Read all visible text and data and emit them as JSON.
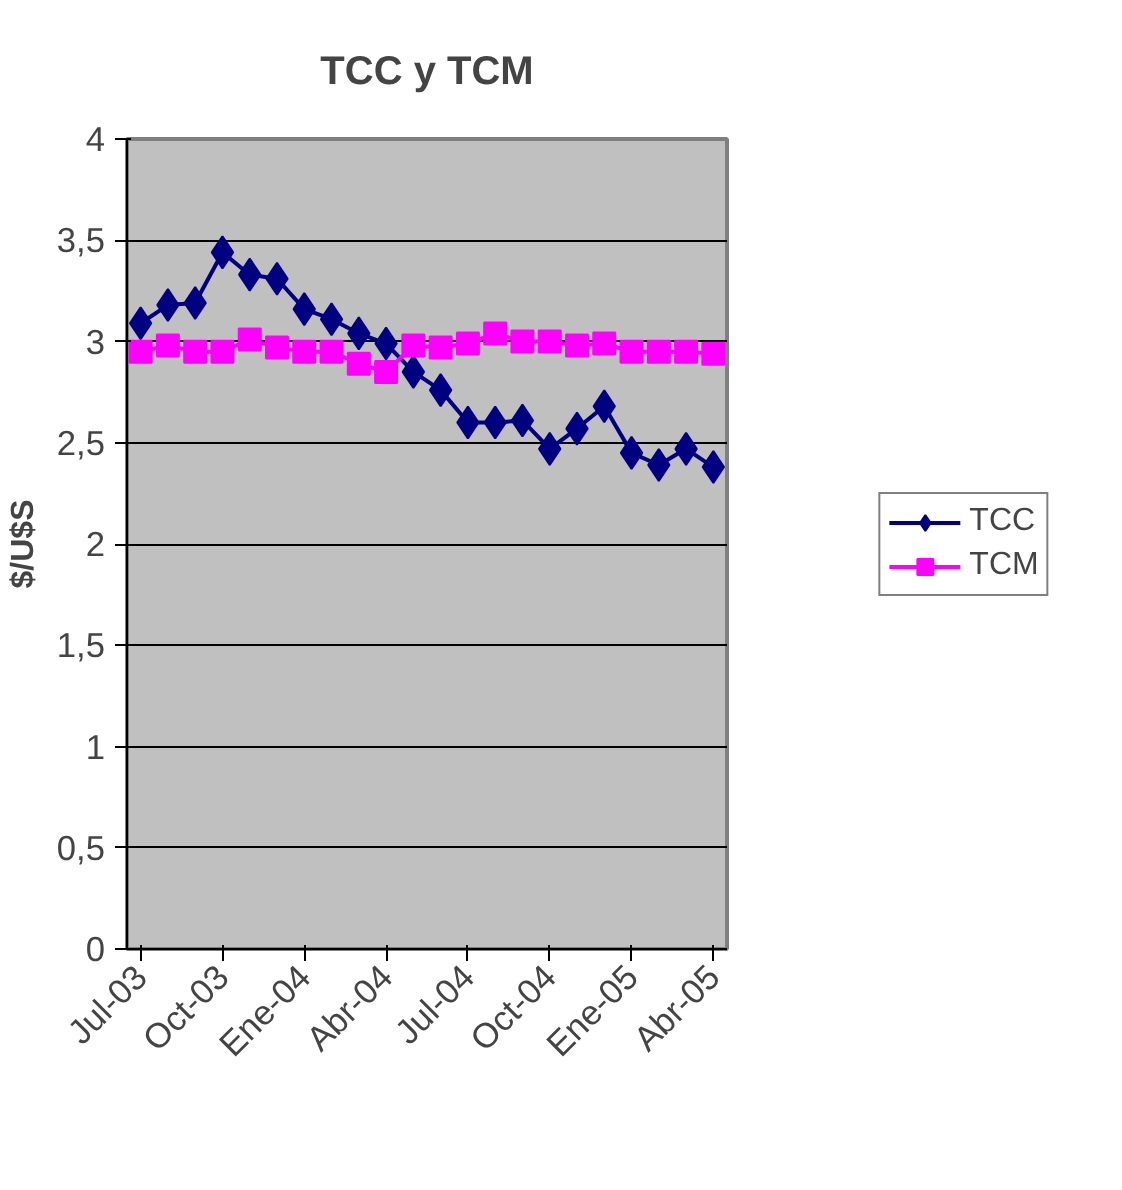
{
  "chart_data": {
    "type": "line",
    "title": "TCC y TCM",
    "ylabel": "$/U$S",
    "categories": [
      "Jul-03",
      null,
      null,
      "Oct-03",
      null,
      null,
      "Ene-04",
      null,
      null,
      "Abr-04",
      null,
      null,
      "Jul-04",
      null,
      null,
      "Oct-04",
      null,
      null,
      "Ene-05",
      null,
      null,
      "Abr-05"
    ],
    "series": [
      {
        "name": "TCC",
        "color": "#000080",
        "marker": "diamond",
        "values": [
          3.09,
          3.18,
          3.19,
          3.44,
          3.33,
          3.31,
          3.16,
          3.11,
          3.04,
          2.99,
          2.85,
          2.76,
          2.6,
          2.6,
          2.61,
          2.47,
          2.57,
          2.68,
          2.45,
          2.39,
          2.47,
          2.38
        ]
      },
      {
        "name": "TCM",
        "color": "#ff00ff",
        "marker": "square",
        "values": [
          2.95,
          2.98,
          2.95,
          2.95,
          3.01,
          2.97,
          2.95,
          2.95,
          2.89,
          2.85,
          2.98,
          2.97,
          2.99,
          3.04,
          3.0,
          3.0,
          2.98,
          2.99,
          2.95,
          2.95,
          2.95,
          2.94
        ]
      }
    ],
    "ylim": [
      0,
      4
    ],
    "yticks": [
      0,
      {
        "value": 0.5,
        "label": "0,5"
      },
      1,
      {
        "value": 1.5,
        "label": "1,5"
      },
      2,
      {
        "value": 2.5,
        "label": "2,5"
      },
      3,
      {
        "value": 3.5,
        "label": "3,5"
      },
      4
    ],
    "grid": "y",
    "legend": "right",
    "line_style": "solid"
  }
}
